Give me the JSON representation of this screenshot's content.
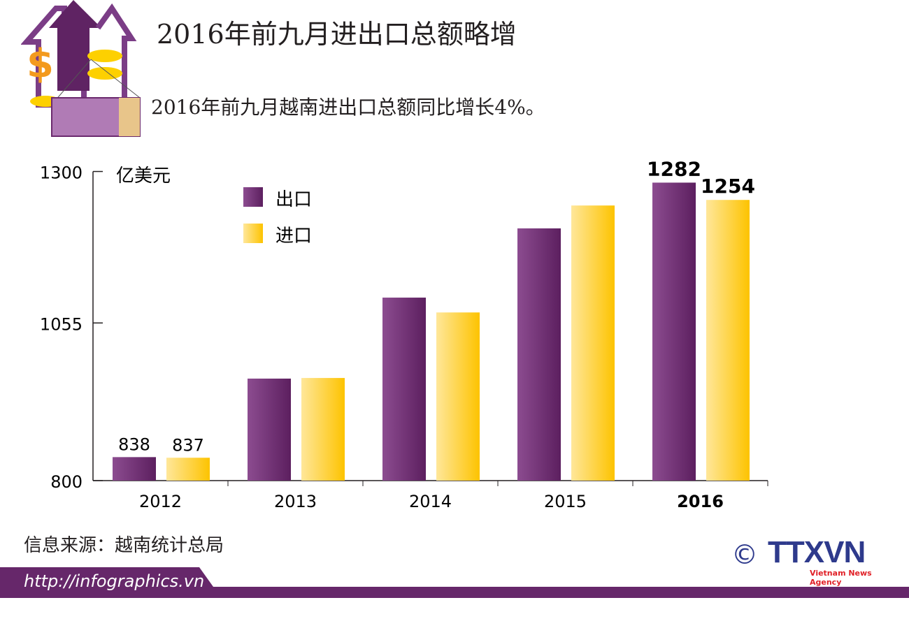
{
  "title": "2016年前九月进出口总额略增",
  "subtitle": "2016年前九月越南进出口总额同比增长4%。",
  "source": "信息来源：越南统计总局",
  "footer_url": "http://infographics.vn",
  "logo": {
    "text": "TTXVN",
    "tagline": "Vietnam News Agency",
    "copyright": "©"
  },
  "colors": {
    "export": "#6b2a6e",
    "import": "#fdc800",
    "footer": "#66276a"
  },
  "chart_data": {
    "type": "bar",
    "ylabel": "亿美元",
    "ylim": [
      800,
      1300
    ],
    "yticks": [
      800,
      1055,
      1300
    ],
    "categories": [
      "2012",
      "2013",
      "2014",
      "2015",
      "2016"
    ],
    "series": [
      {
        "name": "出口",
        "values": [
          838,
          965,
          1096,
          1208,
          1282
        ]
      },
      {
        "name": "进口",
        "values": [
          837,
          966,
          1072,
          1245,
          1254
        ]
      }
    ],
    "data_labels": [
      {
        "category": "2012",
        "series": "出口",
        "text": "838"
      },
      {
        "category": "2012",
        "series": "进口",
        "text": "837"
      },
      {
        "category": "2016",
        "series": "出口",
        "text": "1282"
      },
      {
        "category": "2016",
        "series": "进口",
        "text": "1254"
      }
    ],
    "legend": "top-left"
  }
}
